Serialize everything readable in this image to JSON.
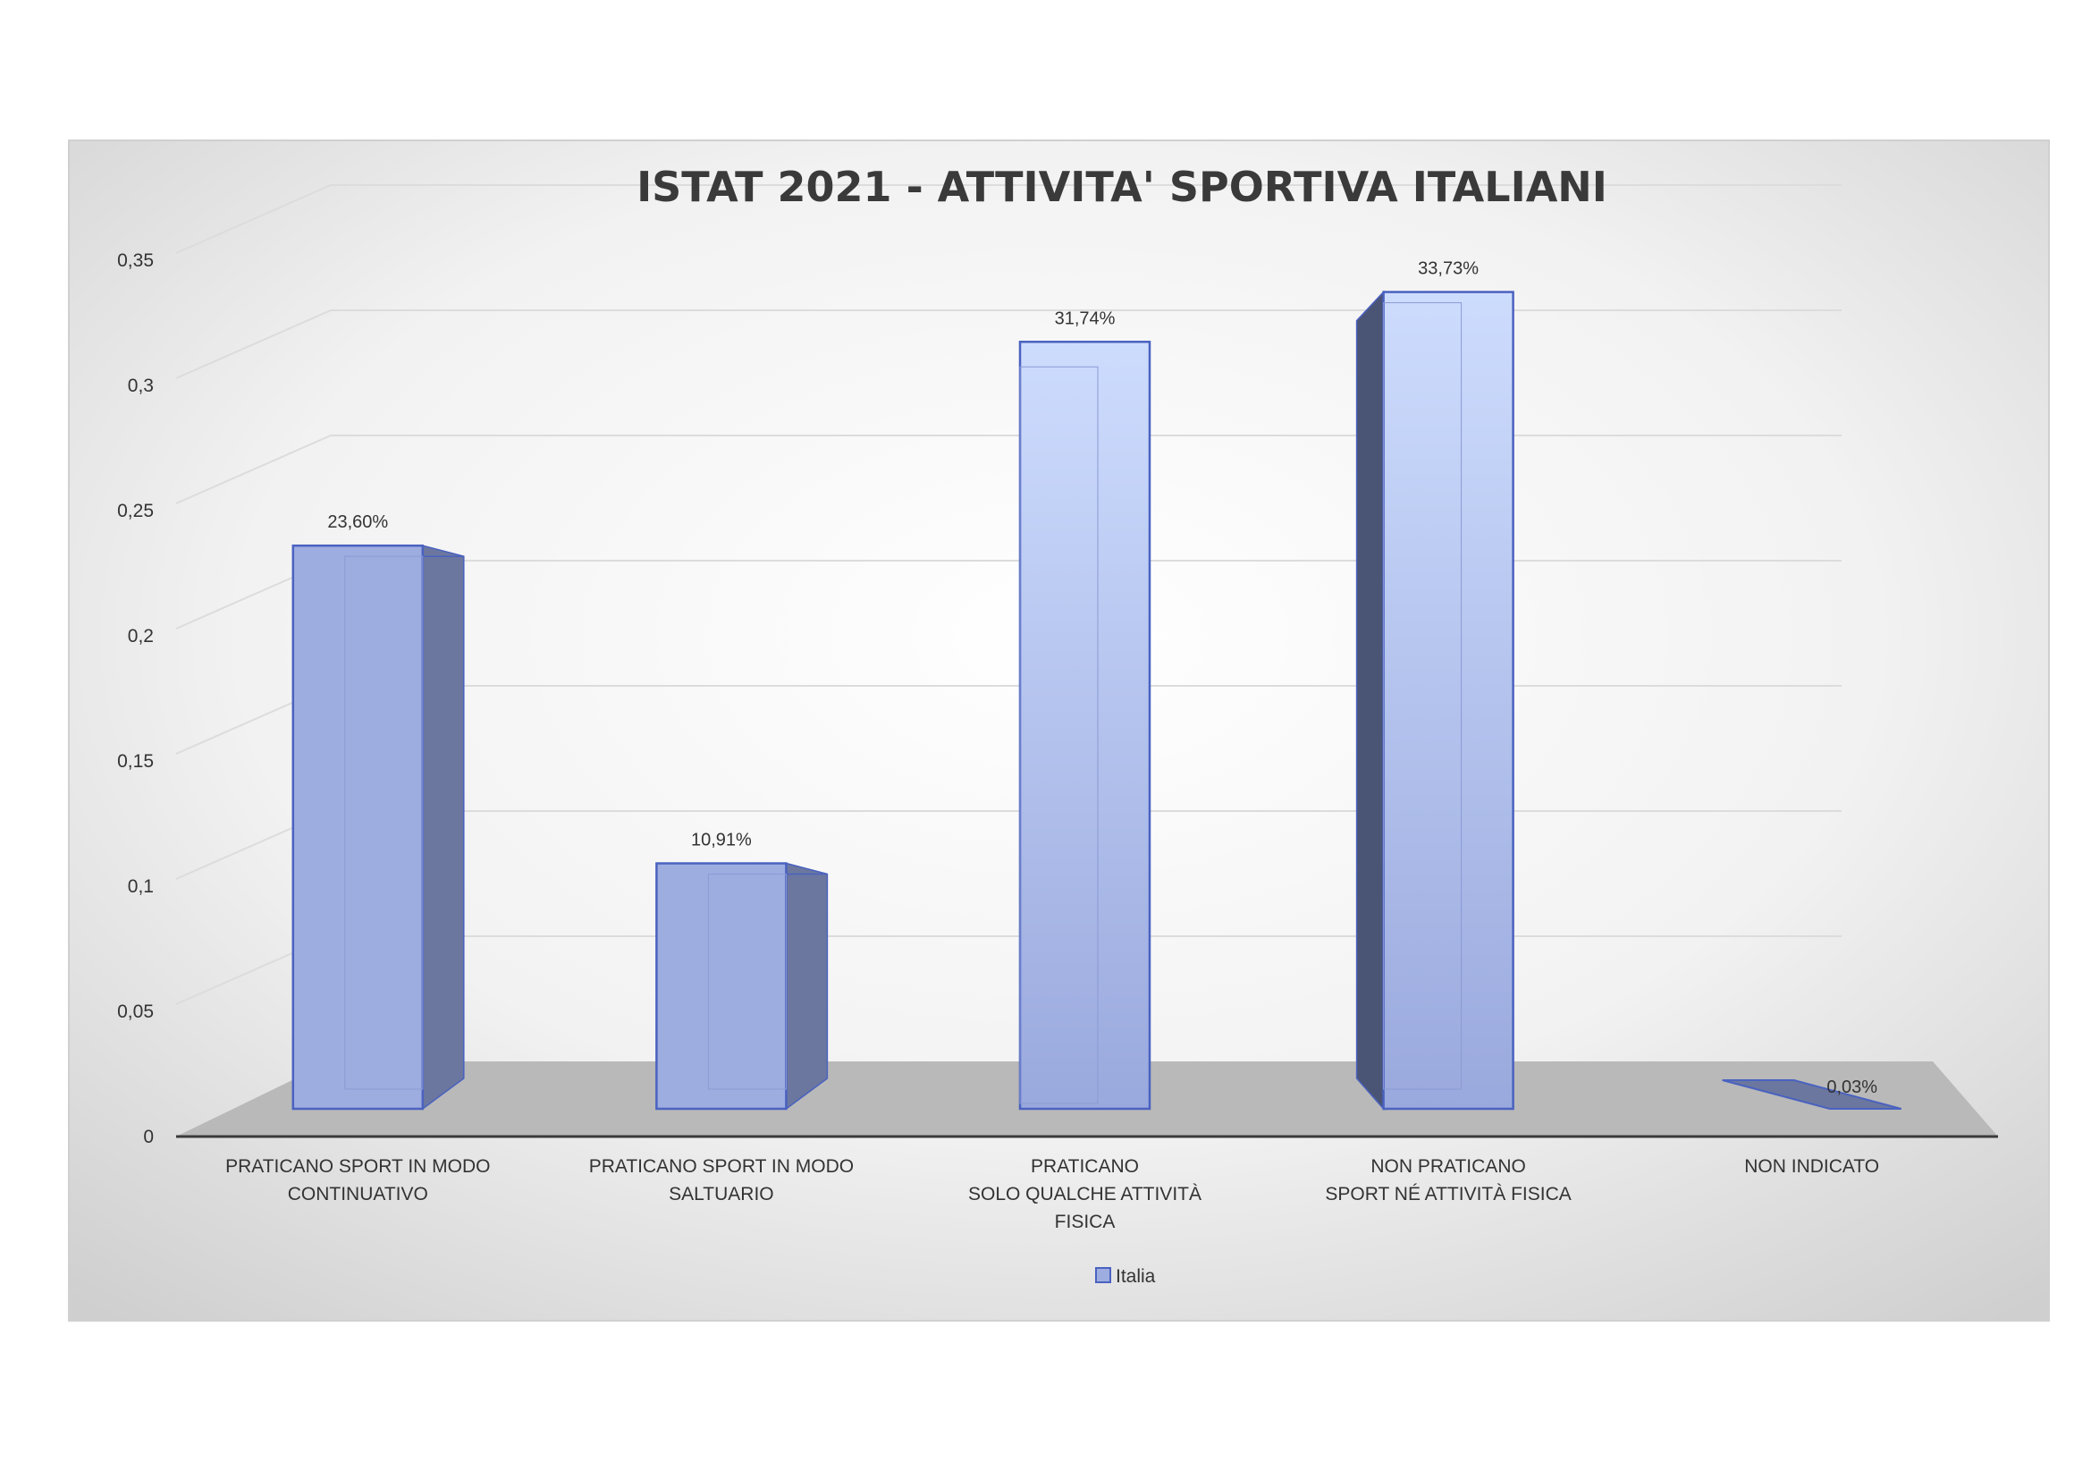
{
  "chart_data": {
    "type": "bar",
    "title": "ISTAT 2021 - ATTIVITA' SPORTIVA ITALIANI",
    "xlabel": "",
    "ylabel": "",
    "ylim": [
      0,
      0.35
    ],
    "yticks": [
      "0",
      "0,05",
      "0,1",
      "0,15",
      "0,2",
      "0,25",
      "0,3",
      "0,35"
    ],
    "ytick_values": [
      0,
      0.05,
      0.1,
      0.15,
      0.2,
      0.25,
      0.3,
      0.35
    ],
    "categories": [
      [
        "PRATICANO SPORT IN MODO",
        "CONTINUATIVO"
      ],
      [
        "PRATICANO SPORT IN MODO",
        "SALTUARIO"
      ],
      [
        "PRATICANO",
        "SOLO QUALCHE ATTIVITÀ",
        "FISICA"
      ],
      [
        "NON PRATICANO",
        "SPORT NÉ ATTIVITÀ FISICA"
      ],
      [
        "NON INDICATO"
      ]
    ],
    "series": [
      {
        "name": "Italia",
        "values": [
          0.236,
          0.1091,
          0.3174,
          0.3373,
          0.0003
        ],
        "data_labels": [
          "23,60%",
          "10,91%",
          "31,74%",
          "33,73%",
          "0,03%"
        ]
      }
    ],
    "legend": {
      "position": "bottom",
      "entries": [
        "Italia"
      ]
    },
    "grid": true,
    "style": "3d-column",
    "colors": {
      "bar_front": "#9eade0",
      "bar_front_top": "#c9d7fb",
      "bar_side_dark": "#6b779e",
      "bar_side_darkest": "#4a5475",
      "bar_edge": "#4a62c0",
      "floor": "#b9b9b9",
      "gridline": "#dcdcdc",
      "axis_line": "#3a3a3a",
      "title": "#3a3a3a",
      "text": "#333333"
    }
  }
}
